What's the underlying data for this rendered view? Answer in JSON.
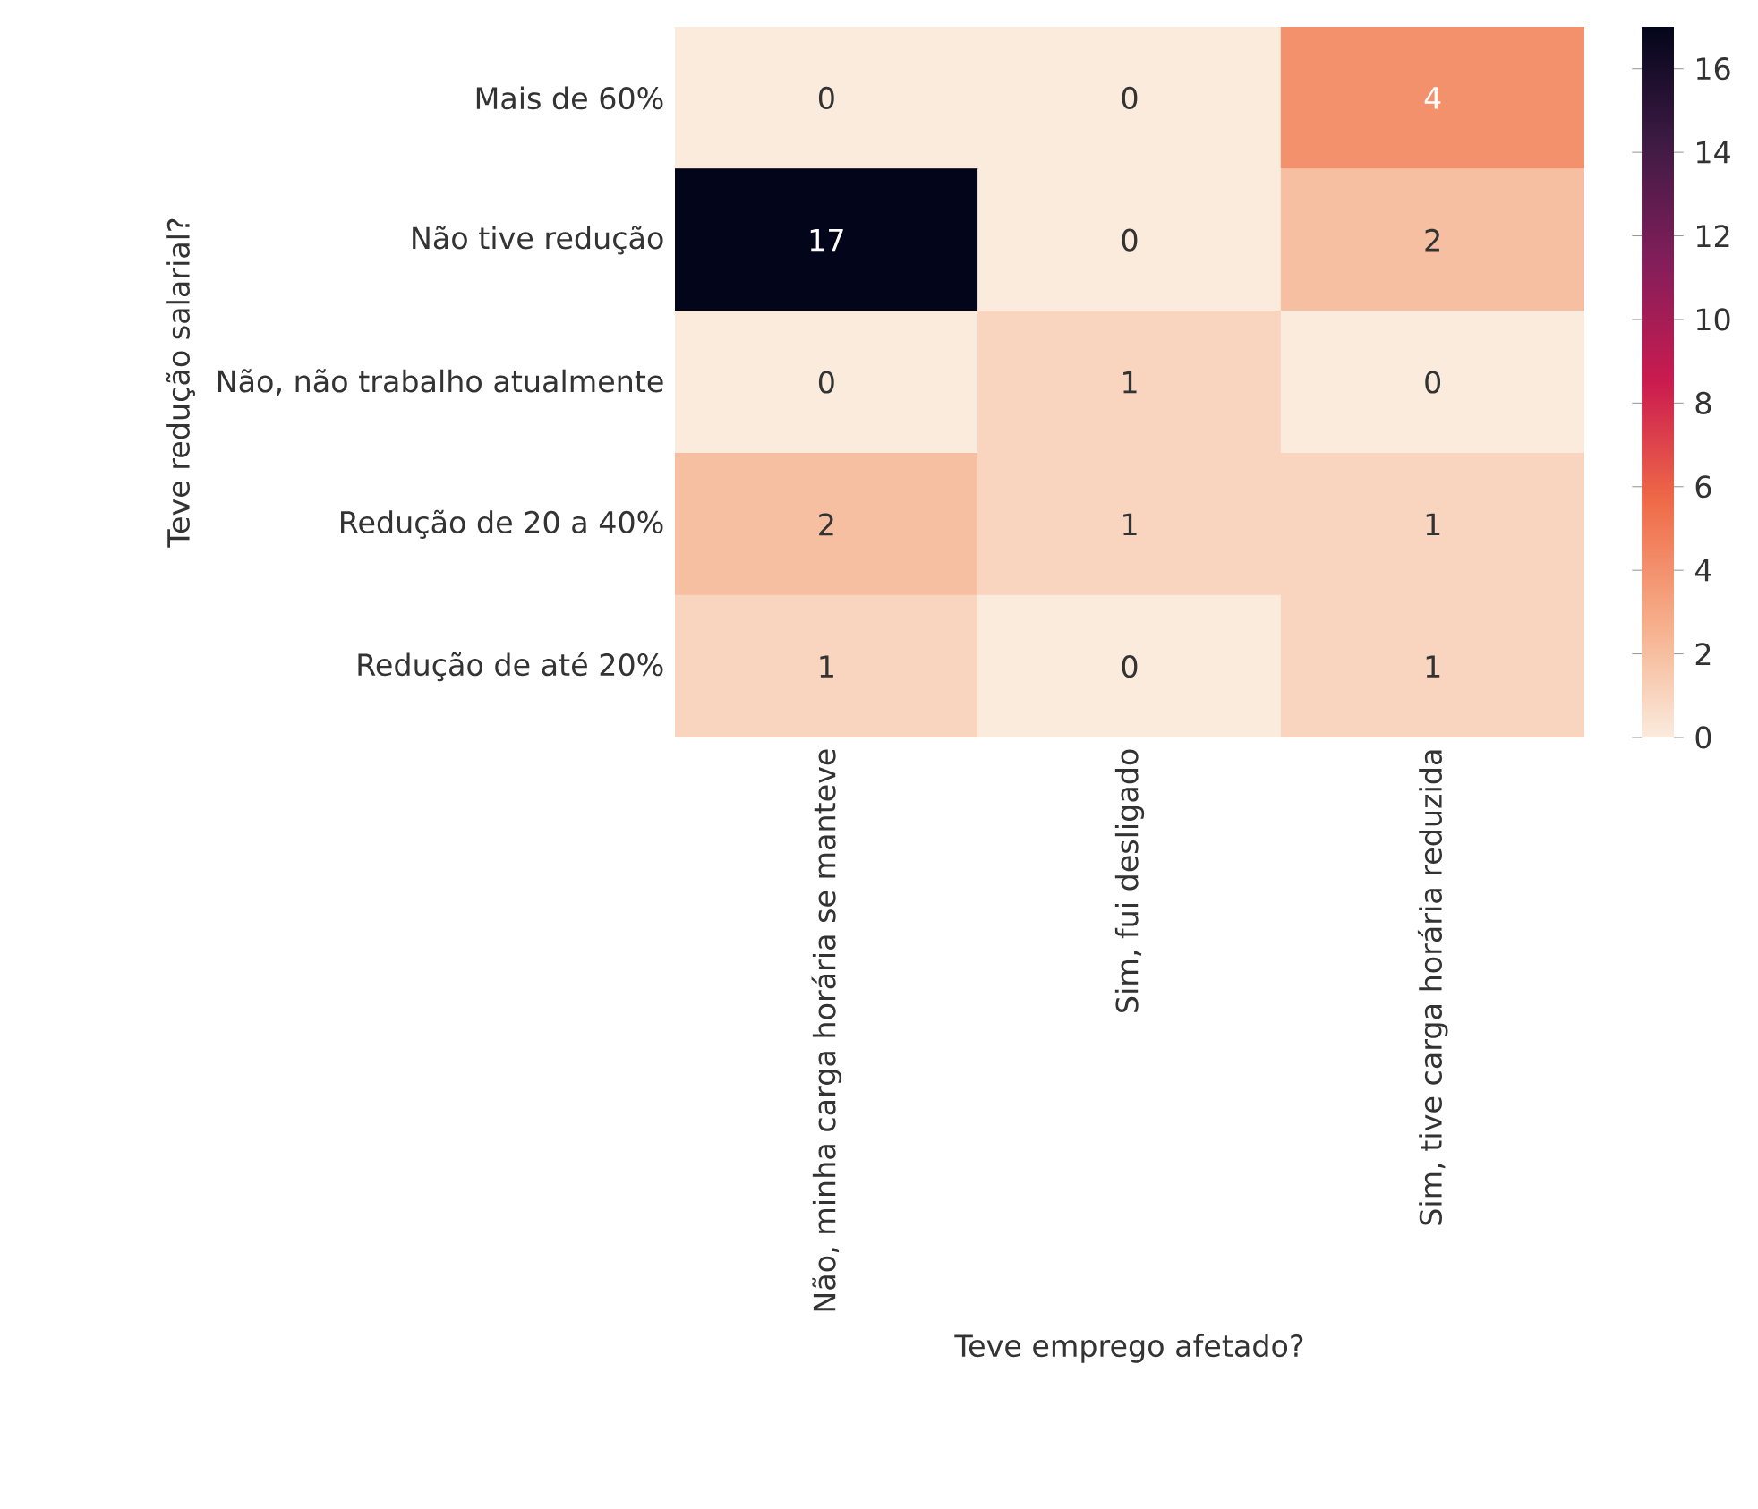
{
  "chart_data": {
    "type": "heatmap",
    "xlabel": "Teve emprego afetado?",
    "ylabel": "Teve redução salarial?",
    "categories": [
      "Não, minha carga horária se manteve",
      "Sim, fui desligado",
      "Sim, tive carga horária reduzida"
    ],
    "y_categories": [
      "Mais de 60%",
      "Não tive redução",
      "Não, não trabalho atualmente",
      "Redução de 20 a 40%",
      "Redução de até 20%"
    ],
    "cells": [
      [
        0,
        0,
        4
      ],
      [
        17,
        0,
        2
      ],
      [
        0,
        1,
        0
      ],
      [
        2,
        1,
        1
      ],
      [
        1,
        0,
        1
      ]
    ],
    "clim": [
      0,
      17
    ],
    "cticks": [
      0,
      2,
      4,
      6,
      8,
      10,
      12,
      14,
      16
    ],
    "data_labels": true
  }
}
